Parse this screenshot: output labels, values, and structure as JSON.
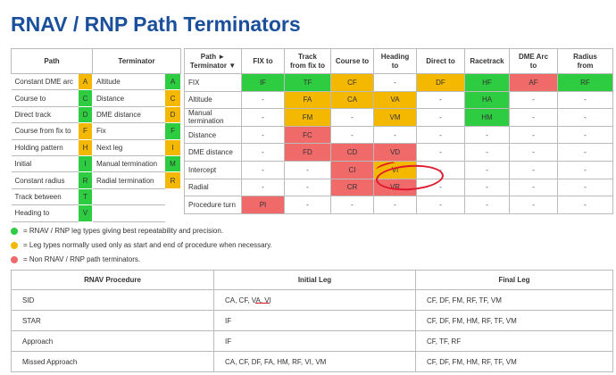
{
  "title": "RNAV / RNP Path Terminators",
  "legend": {
    "path_header": "Path",
    "terminator_header": "Terminator",
    "rows": [
      {
        "path": "Constant DME arc",
        "path_code": "A",
        "path_color": "yellow",
        "term": "Altitude",
        "term_code": "A",
        "term_color": "green"
      },
      {
        "path": "Course to",
        "path_code": "C",
        "path_color": "green",
        "term": "Distance",
        "term_code": "C",
        "term_color": "yellow"
      },
      {
        "path": "Direct track",
        "path_code": "D",
        "path_color": "green",
        "term": "DME distance",
        "term_code": "D",
        "term_color": "yellow"
      },
      {
        "path": "Course from fix to",
        "path_code": "F",
        "path_color": "yellow",
        "term": "Fix",
        "term_code": "F",
        "term_color": "green"
      },
      {
        "path": "Holding pattern",
        "path_code": "H",
        "path_color": "yellow",
        "term": "Next leg",
        "term_code": "I",
        "term_color": "yellow"
      },
      {
        "path": "Initial",
        "path_code": "I",
        "path_color": "green",
        "term": "Manual termination",
        "term_code": "M",
        "term_color": "green"
      },
      {
        "path": "Constant radius",
        "path_code": "R",
        "path_color": "green",
        "term": "Radial termination",
        "term_code": "R",
        "term_color": "yellow"
      },
      {
        "path": "Track between",
        "path_code": "T",
        "path_color": "green",
        "term": "",
        "term_code": "",
        "term_color": ""
      },
      {
        "path": "Heading to",
        "path_code": "V",
        "path_color": "green",
        "term": "",
        "term_code": "",
        "term_color": ""
      }
    ]
  },
  "matrix": {
    "corner_line1": "Path ►",
    "corner_line2": "Terminator ▼",
    "columns": [
      [
        "FIX to"
      ],
      [
        "Track",
        "from fix to"
      ],
      [
        "Course to"
      ],
      [
        "Heading",
        "to"
      ],
      [
        "Direct to"
      ],
      [
        "Racetrack"
      ],
      [
        "DME Arc",
        "to"
      ],
      [
        "Radius",
        "from"
      ]
    ],
    "rows": [
      {
        "label": "FIX",
        "cells": [
          [
            "IF",
            "green"
          ],
          [
            "TF",
            "green"
          ],
          [
            "CF",
            "yellow"
          ],
          [
            "-",
            ""
          ],
          [
            "DF",
            "yellow"
          ],
          [
            "HF",
            "green"
          ],
          [
            "AF",
            "red"
          ],
          [
            "RF",
            "green"
          ]
        ]
      },
      {
        "label": "Altitude",
        "cells": [
          [
            "-",
            ""
          ],
          [
            "FA",
            "yellow"
          ],
          [
            "CA",
            "yellow"
          ],
          [
            "VA",
            "yellow"
          ],
          [
            "-",
            ""
          ],
          [
            "HA",
            "green"
          ],
          [
            "-",
            ""
          ],
          [
            "-",
            ""
          ]
        ]
      },
      {
        "label": "Manual termination",
        "cells": [
          [
            "-",
            ""
          ],
          [
            "FM",
            "yellow"
          ],
          [
            "-",
            ""
          ],
          [
            "VM",
            "yellow"
          ],
          [
            "-",
            ""
          ],
          [
            "HM",
            "green"
          ],
          [
            "-",
            ""
          ],
          [
            "-",
            ""
          ]
        ]
      },
      {
        "label": "Distance",
        "cells": [
          [
            "-",
            ""
          ],
          [
            "FC",
            "red"
          ],
          [
            "-",
            ""
          ],
          [
            "-",
            ""
          ],
          [
            "-",
            ""
          ],
          [
            "-",
            ""
          ],
          [
            "-",
            ""
          ],
          [
            "-",
            ""
          ]
        ]
      },
      {
        "label": "DME distance",
        "cells": [
          [
            "-",
            ""
          ],
          [
            "FD",
            "red"
          ],
          [
            "CD",
            "red"
          ],
          [
            "VD",
            "red"
          ],
          [
            "-",
            ""
          ],
          [
            "-",
            ""
          ],
          [
            "-",
            ""
          ],
          [
            "-",
            ""
          ]
        ]
      },
      {
        "label": "Intercept",
        "cells": [
          [
            "-",
            ""
          ],
          [
            "-",
            ""
          ],
          [
            "CI",
            "red"
          ],
          [
            "VI",
            "yellow"
          ],
          [
            "-",
            ""
          ],
          [
            "-",
            ""
          ],
          [
            "-",
            ""
          ],
          [
            "-",
            ""
          ]
        ]
      },
      {
        "label": "Radial",
        "cells": [
          [
            "-",
            ""
          ],
          [
            "-",
            ""
          ],
          [
            "CR",
            "red"
          ],
          [
            "VR",
            "red"
          ],
          [
            "-",
            ""
          ],
          [
            "-",
            ""
          ],
          [
            "-",
            ""
          ],
          [
            "-",
            ""
          ]
        ]
      },
      {
        "label": "Procedure turn",
        "cells": [
          [
            "PI",
            "red"
          ],
          [
            "-",
            ""
          ],
          [
            "-",
            ""
          ],
          [
            "-",
            ""
          ],
          [
            "-",
            ""
          ],
          [
            "-",
            ""
          ],
          [
            "-",
            ""
          ],
          [
            "-",
            ""
          ]
        ]
      }
    ]
  },
  "key": [
    {
      "color": "green",
      "text": "= RNAV / RNP leg types giving best repeatability and precision."
    },
    {
      "color": "yellow",
      "text": "= Leg types normally used only as start and end of procedure when necessary."
    },
    {
      "color": "red",
      "text": "= Non RNAV / RNP path terminators."
    }
  ],
  "procedures": {
    "headers": [
      "RNAV Procedure",
      "Initial Leg",
      "Final Leg"
    ],
    "rows": [
      [
        "SID",
        "CA, CF, VA, VI",
        "CF, DF, FM, RF, TF, VM"
      ],
      [
        "STAR",
        "IF",
        "CF, DF, FM, HM, RF, TF, VM"
      ],
      [
        "Approach",
        "IF",
        "CF, TF, RF"
      ],
      [
        "Missed Approach",
        "CA, CF, DF, FA, HM, RF, VI, VM",
        "CF, DF, FM, HM, RF, TF, VM"
      ]
    ]
  },
  "colors": {
    "green": "#2ecc40",
    "yellow": "#f5b800",
    "red": "#f06a6a",
    "title": "#1a4f9c",
    "annotation": "#e0182d"
  }
}
